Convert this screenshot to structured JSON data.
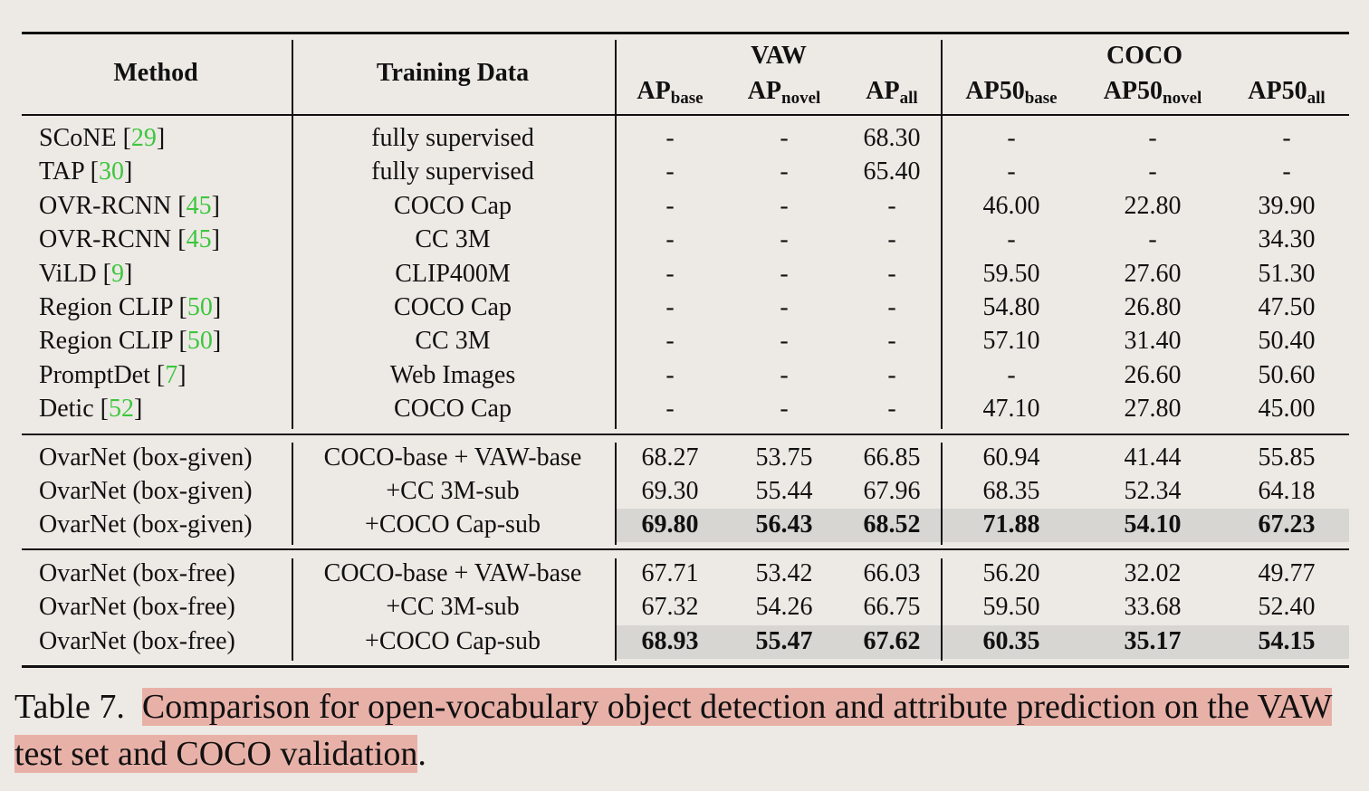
{
  "header": {
    "method": "Method",
    "training_data": "Training Data",
    "group_vaw": "VAW",
    "group_coco": "COCO",
    "cols": [
      {
        "main": "AP",
        "sub": "base"
      },
      {
        "main": "AP",
        "sub": "novel"
      },
      {
        "main": "AP",
        "sub": "all"
      },
      {
        "main": "AP50",
        "sub": "base"
      },
      {
        "main": "AP50",
        "sub": "novel"
      },
      {
        "main": "AP50",
        "sub": "all"
      }
    ]
  },
  "rows": [
    {
      "method": "SCoNE [",
      "ref": "29",
      "close": "]",
      "data": "fully supervised",
      "vals": [
        "-",
        "-",
        "68.30",
        "-",
        "-",
        "-"
      ]
    },
    {
      "method": "TAP [",
      "ref": "30",
      "close": "]",
      "data": "fully supervised",
      "vals": [
        "-",
        "-",
        "65.40",
        "-",
        "-",
        "-"
      ]
    },
    {
      "method": "OVR-RCNN [",
      "ref": "45",
      "close": "]",
      "data": "COCO Cap",
      "vals": [
        "-",
        "-",
        "-",
        "46.00",
        "22.80",
        "39.90"
      ]
    },
    {
      "method": "OVR-RCNN [",
      "ref": "45",
      "close": "]",
      "data": "CC 3M",
      "vals": [
        "-",
        "-",
        "-",
        "-",
        "-",
        "34.30"
      ]
    },
    {
      "method": "ViLD [",
      "ref": "9",
      "close": "]",
      "data": "CLIP400M",
      "vals": [
        "-",
        "-",
        "-",
        "59.50",
        "27.60",
        "51.30"
      ]
    },
    {
      "method": "Region CLIP [",
      "ref": "50",
      "close": "]",
      "data": "COCO Cap",
      "vals": [
        "-",
        "-",
        "-",
        "54.80",
        "26.80",
        "47.50"
      ]
    },
    {
      "method": "Region CLIP [",
      "ref": "50",
      "close": "]",
      "data": "CC 3M",
      "vals": [
        "-",
        "-",
        "-",
        "57.10",
        "31.40",
        "50.40"
      ]
    },
    {
      "method": "PromptDet [",
      "ref": "7",
      "close": "]",
      "data": "Web Images",
      "vals": [
        "-",
        "-",
        "-",
        "-",
        "26.60",
        "50.60"
      ]
    },
    {
      "method": "Detic [",
      "ref": "52",
      "close": "]",
      "data": "COCO Cap",
      "vals": [
        "-",
        "-",
        "-",
        "47.10",
        "27.80",
        "45.00"
      ]
    },
    {
      "method": "OvarNet (box-given)",
      "ref": "",
      "close": "",
      "data": "COCO-base + VAW-base",
      "vals": [
        "68.27",
        "53.75",
        "66.85",
        "60.94",
        "41.44",
        "55.85"
      ]
    },
    {
      "method": "OvarNet (box-given)",
      "ref": "",
      "close": "",
      "data": "+CC 3M-sub",
      "vals": [
        "69.30",
        "55.44",
        "67.96",
        "68.35",
        "52.34",
        "64.18"
      ]
    },
    {
      "method": "OvarNet (box-given)",
      "ref": "",
      "close": "",
      "data": "+COCO Cap-sub",
      "vals": [
        "69.80",
        "56.43",
        "68.52",
        "71.88",
        "54.10",
        "67.23"
      ]
    },
    {
      "method": "OvarNet (box-free)",
      "ref": "",
      "close": "",
      "data": "COCO-base + VAW-base",
      "vals": [
        "67.71",
        "53.42",
        "66.03",
        "56.20",
        "32.02",
        "49.77"
      ]
    },
    {
      "method": "OvarNet (box-free)",
      "ref": "",
      "close": "",
      "data": "+CC 3M-sub",
      "vals": [
        "67.32",
        "54.26",
        "66.75",
        "59.50",
        "33.68",
        "52.40"
      ]
    },
    {
      "method": "OvarNet (box-free)",
      "ref": "",
      "close": "",
      "data": "+COCO Cap-sub",
      "vals": [
        "68.93",
        "55.47",
        "67.62",
        "60.35",
        "35.17",
        "54.15"
      ]
    }
  ],
  "caption": {
    "label": "Table 7.",
    "text": "Comparison for open-vocabulary object detection and attribute prediction on the VAW test set and COCO validation",
    "end": "."
  },
  "colors": {
    "highlight_row": "#d7d6d3",
    "caption_highlight": "#e8b1a8",
    "ref_link": "#3ec63e"
  }
}
